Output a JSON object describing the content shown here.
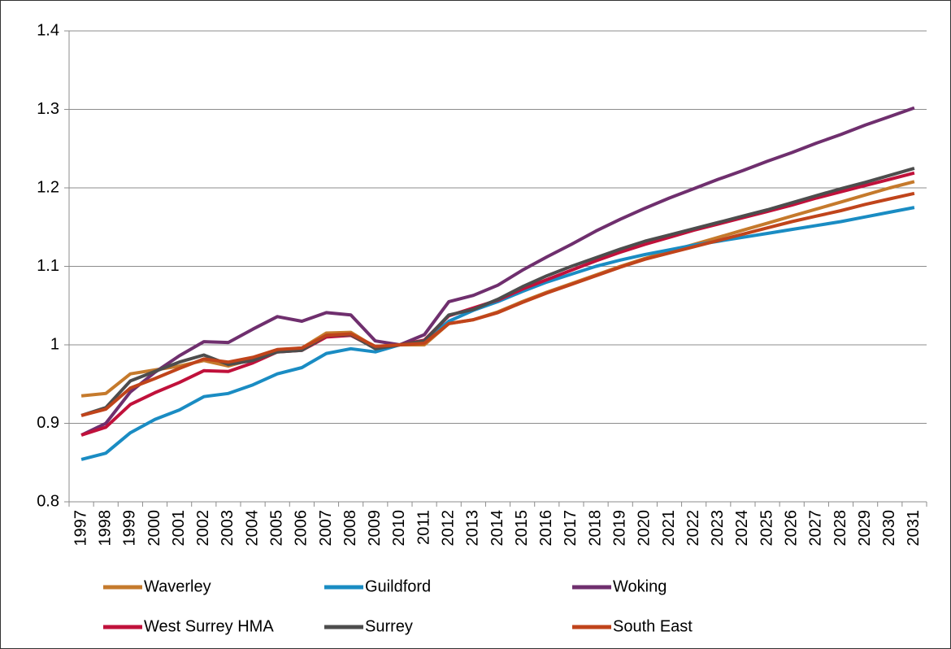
{
  "chart_data": {
    "type": "line",
    "categories": [
      "1997",
      "1998",
      "1999",
      "2000",
      "2001",
      "2002",
      "2003",
      "2004",
      "2005",
      "2006",
      "2007",
      "2008",
      "2009",
      "2010",
      "2011",
      "2012",
      "2013",
      "2014",
      "2015",
      "2016",
      "2017",
      "2018",
      "2019",
      "2020",
      "2021",
      "2022",
      "2023",
      "2024",
      "2025",
      "2026",
      "2027",
      "2028",
      "2029",
      "2030",
      "2031"
    ],
    "series": [
      {
        "name": "Waverley",
        "color": "#c57a2c",
        "values": [
          0.935,
          0.938,
          0.963,
          0.968,
          0.973,
          0.98,
          0.973,
          0.982,
          0.993,
          0.996,
          1.015,
          1.016,
          0.997,
          1.0,
          1.0,
          1.027,
          1.032,
          1.042,
          1.055,
          1.067,
          1.078,
          1.089,
          1.1,
          1.11,
          1.119,
          1.128,
          1.137,
          1.146,
          1.155,
          1.164,
          1.173,
          1.182,
          1.191,
          1.2,
          1.208
        ]
      },
      {
        "name": "Guildford",
        "color": "#1a8cc3",
        "values": [
          0.854,
          0.862,
          0.888,
          0.905,
          0.917,
          0.934,
          0.938,
          0.949,
          0.963,
          0.971,
          0.989,
          0.995,
          0.991,
          1.0,
          1.005,
          1.03,
          1.044,
          1.055,
          1.068,
          1.08,
          1.09,
          1.1,
          1.108,
          1.115,
          1.121,
          1.127,
          1.132,
          1.137,
          1.142,
          1.147,
          1.152,
          1.157,
          1.163,
          1.169,
          1.175
        ]
      },
      {
        "name": "Woking",
        "color": "#6f2f6e",
        "values": [
          0.885,
          0.9,
          0.94,
          0.965,
          0.986,
          1.004,
          1.003,
          1.02,
          1.036,
          1.03,
          1.041,
          1.038,
          1.005,
          1.0,
          1.013,
          1.055,
          1.063,
          1.076,
          1.095,
          1.112,
          1.128,
          1.145,
          1.16,
          1.174,
          1.187,
          1.199,
          1.211,
          1.222,
          1.234,
          1.245,
          1.257,
          1.268,
          1.28,
          1.291,
          1.302
        ]
      },
      {
        "name": "West Surrey HMA",
        "color": "#c0113b",
        "values": [
          0.885,
          0.895,
          0.924,
          0.939,
          0.952,
          0.967,
          0.966,
          0.977,
          0.991,
          0.993,
          1.01,
          1.012,
          0.996,
          1.0,
          1.006,
          1.037,
          1.047,
          1.057,
          1.071,
          1.083,
          1.095,
          1.107,
          1.118,
          1.128,
          1.137,
          1.146,
          1.154,
          1.162,
          1.17,
          1.178,
          1.187,
          1.195,
          1.203,
          1.211,
          1.219
        ]
      },
      {
        "name": "Surrey",
        "color": "#4d4d4d",
        "values": [
          0.91,
          0.92,
          0.954,
          0.966,
          0.978,
          0.987,
          0.975,
          0.98,
          0.991,
          0.993,
          1.012,
          1.013,
          0.995,
          1.0,
          1.005,
          1.038,
          1.045,
          1.058,
          1.074,
          1.088,
          1.1,
          1.111,
          1.122,
          1.132,
          1.14,
          1.148,
          1.156,
          1.164,
          1.172,
          1.181,
          1.19,
          1.199,
          1.207,
          1.216,
          1.225
        ]
      },
      {
        "name": "South East",
        "color": "#c0441b",
        "values": [
          0.91,
          0.918,
          0.945,
          0.957,
          0.97,
          0.982,
          0.978,
          0.984,
          0.994,
          0.996,
          1.012,
          1.014,
          0.998,
          1.0,
          1.002,
          1.027,
          1.032,
          1.041,
          1.054,
          1.066,
          1.077,
          1.088,
          1.099,
          1.109,
          1.117,
          1.125,
          1.133,
          1.141,
          1.149,
          1.157,
          1.164,
          1.171,
          1.179,
          1.186,
          1.193
        ]
      }
    ],
    "ylim": [
      0.8,
      1.4
    ],
    "yticks": [
      0.8,
      0.9,
      1,
      1.1,
      1.2,
      1.3,
      1.4
    ],
    "grid": true,
    "legend": "bottom"
  }
}
